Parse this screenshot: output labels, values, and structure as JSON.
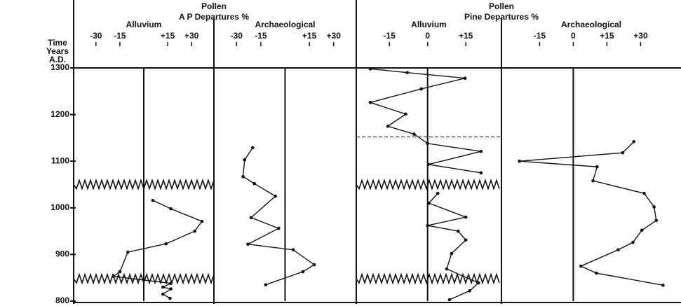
{
  "groups": [
    {
      "title": "Pollen",
      "subtitle": "A P Departures %"
    },
    {
      "title": "Pollen",
      "subtitle": "Pine Departures %"
    }
  ],
  "time_axis": {
    "label": [
      "Time",
      "Years",
      "A.D."
    ],
    "ylim": [
      800,
      1300
    ],
    "yticks": [
      800,
      900,
      1000,
      1100,
      1200,
      1300
    ]
  },
  "chart_data": [
    {
      "type": "line",
      "title": "Alluvium",
      "color": "#111",
      "xlim": [
        -44,
        44
      ],
      "xticks": [
        -30,
        -15,
        {
          "value": 15,
          "label": "+15"
        },
        {
          "value": 30,
          "label": "+30"
        }
      ],
      "breaks": [
        1050,
        848
      ],
      "values": [
        5.7,
        17,
        36.5,
        32,
        14,
        -10,
        -15,
        -19,
        17,
        12,
        17,
        12,
        16.5
      ],
      "time": [
        1016,
        998,
        971,
        950,
        923,
        905,
        863,
        853,
        838,
        830,
        826,
        815,
        806
      ]
    },
    {
      "type": "line",
      "title": "Archaeological",
      "color": "#111",
      "xlim": [
        -44,
        44
      ],
      "xticks": [
        -30,
        -15,
        {
          "value": 15,
          "label": "+15"
        },
        {
          "value": 30,
          "label": "+30"
        }
      ],
      "values": [
        -20,
        -25,
        -26,
        -19,
        -6,
        -21,
        -4,
        -23,
        5,
        18,
        11,
        -12
      ],
      "time": [
        1129,
        1103,
        1067,
        1052,
        1025,
        979,
        956,
        922,
        910,
        878,
        863,
        835
      ]
    },
    {
      "type": "line",
      "title": "Alluvium",
      "color": "#111",
      "xlim": [
        -28,
        29
      ],
      "xticks": [
        -15,
        0,
        {
          "value": 15,
          "label": "+15"
        }
      ],
      "breaks": [
        1050,
        848
      ],
      "reference_line": 1152,
      "values": [
        -22.5,
        -8,
        14.7,
        -2.5,
        -22.5,
        -8.6,
        -15.6,
        -5.3,
        0,
        21,
        0.3,
        21,
        null,
        4,
        0.5,
        15,
        0,
        12,
        15,
        9.4,
        7.5,
        20,
        16.5,
        8.6
      ],
      "time": [
        1298,
        1290,
        1278,
        1255,
        1226,
        1201,
        1175,
        1158,
        1138,
        1121,
        1093,
        1075,
        null,
        1031,
        1010,
        980,
        962,
        950,
        931,
        902,
        869,
        839,
        822,
        803
      ]
    },
    {
      "type": "line",
      "title": "Archaeological",
      "color": "#111",
      "xlim": [
        -32,
        48
      ],
      "xticks": [
        -15,
        0,
        {
          "value": 15,
          "label": "+15"
        },
        {
          "value": 30,
          "label": "+30"
        }
      ],
      "values": [
        27,
        22,
        -24,
        10.6,
        8.8,
        31.6,
        36,
        37,
        30.6,
        26.6,
        20,
        3.4,
        10.3,
        40
      ],
      "time": [
        1142,
        1118,
        1100,
        1088,
        1058,
        1031,
        1002,
        973,
        952,
        926,
        910,
        875,
        860,
        834
      ]
    }
  ]
}
